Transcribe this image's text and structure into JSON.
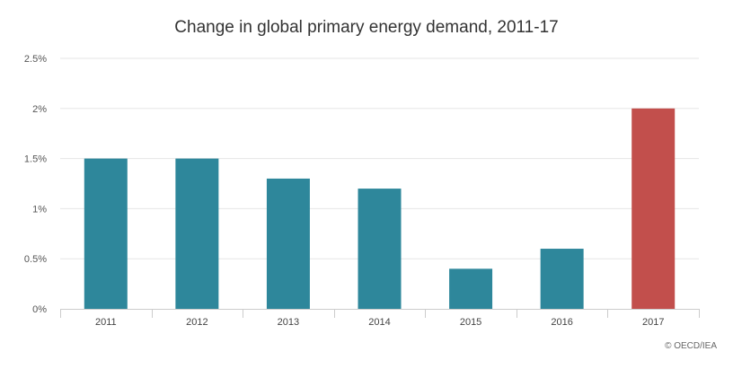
{
  "chart_data": {
    "type": "bar",
    "title": "Change in global primary energy demand, 2011-17",
    "categories": [
      "2011",
      "2012",
      "2013",
      "2014",
      "2015",
      "2016",
      "2017"
    ],
    "values": [
      1.5,
      1.5,
      1.3,
      1.2,
      0.4,
      0.6,
      2.0
    ],
    "highlight_index": 6,
    "ylim": [
      0,
      2.5
    ],
    "yticks": [
      {
        "value": 0,
        "label": "0%"
      },
      {
        "value": 0.5,
        "label": "0.5%"
      },
      {
        "value": 1,
        "label": "1%"
      },
      {
        "value": 1.5,
        "label": "1.5%"
      },
      {
        "value": 2,
        "label": "2%"
      },
      {
        "value": 2.5,
        "label": "2.5%"
      }
    ],
    "grid": true,
    "legend": "none",
    "colors": {
      "bar": "#2e879b",
      "highlight": "#c24f4c",
      "grid": "#e6e6e6",
      "axis": "#cccccc"
    }
  },
  "credit": "© OECD/IEA"
}
